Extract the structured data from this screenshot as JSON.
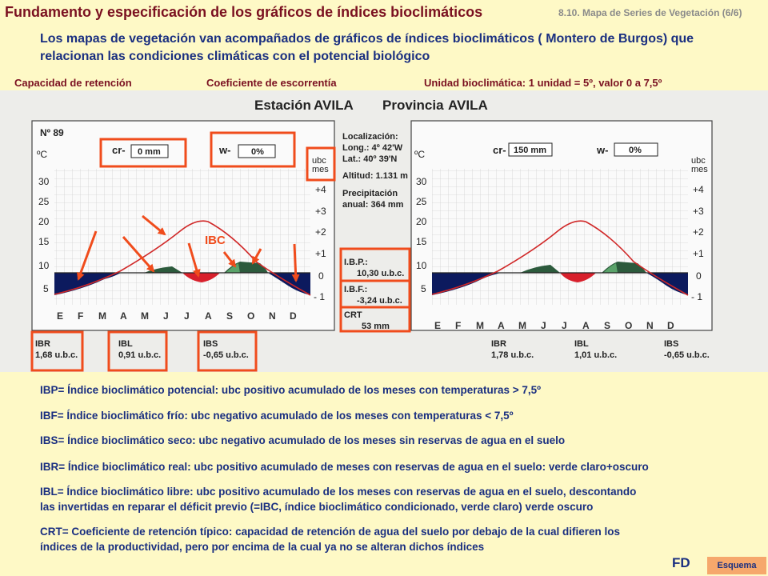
{
  "header": {
    "title": "Fundamento y especificación de los gráficos de índices bioclimáticos",
    "slide_no": "8.10. Mapa de Series de Vegetación (6/6)",
    "intro": "Los mapas de vegetación van acompañados de gráficos de índices bioclimáticos ( Montero de Burgos) que relacionan las condiciones climáticas con el potencial biológico"
  },
  "labels": {
    "retencion": "Capacidad de retención",
    "escorrentia": "Coeficiente de escorrentía",
    "unidad": "Unidad bioclimática: 1 unidad = 5º, valor 0 a 7,5º"
  },
  "figure": {
    "estacion_label": "Estación",
    "estacion": "AVILA",
    "provincia_label": "Provincia",
    "provincia": "AVILA",
    "no": "Nº 89",
    "degc": "ºC",
    "ubc": "ubc",
    "mes": "mes",
    "y_ticks": [
      "30",
      "25",
      "20",
      "15",
      "10",
      "5"
    ],
    "ubc_ticks": [
      "+4",
      "+3",
      "+2",
      "+1",
      "0",
      "- 1"
    ],
    "months": [
      "E",
      "F",
      "M",
      "A",
      "M",
      "J",
      "J",
      "A",
      "S",
      "O",
      "N",
      "D"
    ],
    "ibc_label": "IBC",
    "left": {
      "cr_label": "cr-",
      "cr": "0 mm",
      "w_label": "w-",
      "w": "0%",
      "ibr_label": "IBR",
      "ibr": "1,68 u.b.c.",
      "ibl_label": "IBL",
      "ibl": "0,91 u.b.c.",
      "ibs_label": "IBS",
      "ibs": "-0,65 u.b.c."
    },
    "right": {
      "cr_label": "cr-",
      "cr": "150 mm",
      "w_label": "w-",
      "w": "0%",
      "ibr_label": "IBR",
      "ibr": "1,78 u.b.c.",
      "ibl_label": "IBL",
      "ibl": "1,01 u.b.c.",
      "ibs_label": "IBS",
      "ibs": "-0,65 u.b.c."
    },
    "info": {
      "loc_label": "Localización:",
      "long": "Long.: 4º 42'W",
      "lat": "Lat.: 40º 39'N",
      "alt": "Altitud: 1.131 m",
      "prec1": "Precipitación",
      "prec2": "anual: 364 mm",
      "ibp_label": "I.B.P.:",
      "ibp": "10,30 u.b.c.",
      "ibf_label": "I.B.F.:",
      "ibf": "-3,24 u.b.c.",
      "crt_label": "CRT",
      "crt": "53 mm"
    },
    "colors": {
      "red_box": "#f04c1c",
      "navy": "#0c1a5e",
      "dark_green": "#2c5a3c",
      "light_green": "#5aa36a",
      "red": "#d8202c",
      "curve": "#d02828"
    }
  },
  "definitions": [
    "IBP= Índice bioclimático potencial: ubc positivo acumulado de los meses con temperaturas > 7,5º",
    "IBF= Índice bioclimático frío: ubc negativo acumulado de los meses con temperaturas < 7,5º",
    "IBS= Índice bioclimático seco: ubc negativo acumulado de los meses sin reservas de agua en el suelo",
    "IBR= Índice bioclimático real: ubc positivo acumulado de  meses con reservas de agua en el suelo: verde claro+oscuro",
    "IBL= Índice bioclimático libre: ubc positivo acumulado de los meses con reservas de agua en el suelo, descontando",
    "las invertidas en reparar el déficit previo (=IBC, índice bioclimático condicionado, verde claro) verde oscuro",
    "CRT= Coeficiente de retención típico: capacidad de retención de agua del suelo por debajo de la cual difieren los",
    "índices de la productividad, pero por encima de la cual ya no se alteran dichos índices"
  ],
  "footer": {
    "fd": "FD",
    "esquema": "Esquema"
  }
}
